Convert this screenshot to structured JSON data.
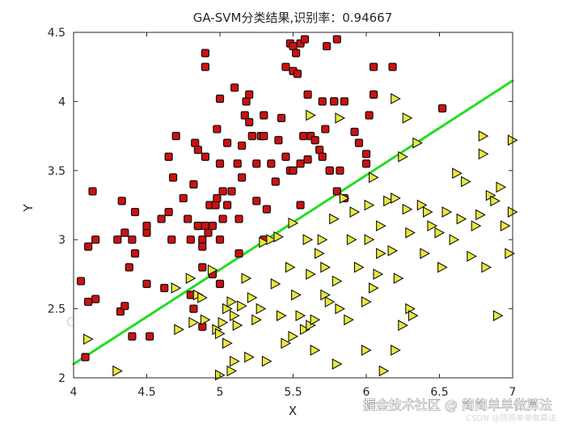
{
  "chart_data": {
    "type": "scatter",
    "title": "GA-SVM分类结果,识别率：0.94667",
    "xlabel": "X",
    "ylabel": "Y",
    "xlim": [
      4,
      7
    ],
    "ylim": [
      2,
      4.5
    ],
    "xticks": [
      4,
      4.5,
      5,
      5.5,
      6,
      6.5,
      7
    ],
    "yticks": [
      2,
      2.5,
      3,
      3.5,
      4,
      4.5
    ],
    "xtick_labels": [
      "4",
      "4.5",
      "5",
      "5.5",
      "6",
      "6.5",
      "7"
    ],
    "ytick_labels": [
      "2",
      "2.5",
      "3",
      "3.5",
      "4",
      "4.5"
    ],
    "grid": false,
    "decision_boundary": {
      "x": [
        4,
        7
      ],
      "y": [
        2.1,
        4.15
      ],
      "color": "#22dd22"
    },
    "series": [
      {
        "marker": "square",
        "color": "#cc1111",
        "points": [
          [
            4.05,
            2.7
          ],
          [
            4.08,
            2.15
          ],
          [
            4.1,
            2.95
          ],
          [
            4.1,
            2.55
          ],
          [
            4.13,
            3.35
          ],
          [
            4.15,
            3.0
          ],
          [
            4.15,
            2.57
          ],
          [
            4.3,
            3.0
          ],
          [
            4.32,
            2.48
          ],
          [
            4.33,
            3.28
          ],
          [
            4.35,
            3.05
          ],
          [
            4.35,
            2.52
          ],
          [
            4.38,
            2.8
          ],
          [
            4.4,
            2.3
          ],
          [
            4.4,
            3.0
          ],
          [
            4.42,
            3.2
          ],
          [
            4.42,
            2.9
          ],
          [
            4.5,
            3.05
          ],
          [
            4.5,
            3.1
          ],
          [
            4.5,
            2.68
          ],
          [
            4.52,
            2.3
          ],
          [
            4.6,
            3.15
          ],
          [
            4.62,
            2.65
          ],
          [
            4.65,
            3.6
          ],
          [
            4.65,
            3.2
          ],
          [
            4.67,
            3.0
          ],
          [
            4.68,
            3.45
          ],
          [
            4.7,
            3.75
          ],
          [
            4.75,
            3.3
          ],
          [
            4.78,
            3.15
          ],
          [
            4.8,
            3.0
          ],
          [
            4.8,
            2.6
          ],
          [
            4.82,
            2.5
          ],
          [
            4.82,
            3.4
          ],
          [
            4.83,
            3.7
          ],
          [
            4.85,
            3.1
          ],
          [
            4.85,
            3.65
          ],
          [
            4.85,
            3.1
          ],
          [
            4.88,
            3.0
          ],
          [
            4.88,
            2.95
          ],
          [
            4.88,
            2.37
          ],
          [
            4.88,
            2.8
          ],
          [
            4.9,
            4.35
          ],
          [
            4.9,
            4.25
          ],
          [
            4.9,
            3.6
          ],
          [
            4.9,
            3.1
          ],
          [
            4.92,
            3.05
          ],
          [
            4.93,
            3.25
          ],
          [
            4.95,
            2.75
          ],
          [
            4.95,
            3.1
          ],
          [
            4.97,
            3.25
          ],
          [
            4.98,
            3.3
          ],
          [
            4.98,
            3.8
          ],
          [
            5.0,
            3.55
          ],
          [
            5.0,
            3.0
          ],
          [
            5.0,
            2.68
          ],
          [
            5.0,
            4.02
          ],
          [
            5.02,
            3.35
          ],
          [
            5.02,
            3.15
          ],
          [
            5.05,
            3.25
          ],
          [
            5.05,
            3.7
          ],
          [
            5.08,
            3.35
          ],
          [
            5.1,
            4.1
          ],
          [
            5.12,
            3.55
          ],
          [
            5.13,
            3.15
          ],
          [
            5.13,
            2.9
          ],
          [
            5.15,
            3.68
          ],
          [
            5.15,
            3.45
          ],
          [
            5.17,
            3.9
          ],
          [
            5.18,
            4.0
          ],
          [
            5.2,
            3.85
          ],
          [
            5.2,
            4.05
          ],
          [
            5.22,
            3.75
          ],
          [
            5.25,
            3.55
          ],
          [
            5.25,
            3.28
          ],
          [
            5.28,
            3.75
          ],
          [
            5.3,
            3.9
          ],
          [
            5.3,
            3.75
          ],
          [
            5.3,
            3.0
          ],
          [
            5.32,
            3.22
          ],
          [
            5.35,
            3.55
          ],
          [
            5.38,
            3.42
          ],
          [
            5.4,
            3.72
          ],
          [
            5.42,
            3.88
          ],
          [
            5.45,
            4.25
          ],
          [
            5.45,
            3.6
          ],
          [
            5.48,
            4.42
          ],
          [
            5.48,
            3.5
          ],
          [
            5.5,
            3.5
          ],
          [
            5.5,
            4.4
          ],
          [
            5.5,
            4.22
          ],
          [
            5.52,
            4.35
          ],
          [
            5.53,
            4.2
          ],
          [
            5.55,
            3.55
          ],
          [
            5.55,
            3.25
          ],
          [
            5.55,
            4.42
          ],
          [
            5.57,
            3.75
          ],
          [
            5.58,
            4.45
          ],
          [
            5.6,
            3.58
          ],
          [
            5.6,
            4.05
          ],
          [
            5.62,
            3.75
          ],
          [
            5.65,
            3.72
          ],
          [
            5.68,
            3.65
          ],
          [
            5.7,
            4.0
          ],
          [
            5.7,
            3.6
          ],
          [
            5.72,
            3.8
          ],
          [
            5.73,
            4.4
          ],
          [
            5.75,
            3.5
          ],
          [
            5.75,
            3.5
          ],
          [
            5.78,
            4.0
          ],
          [
            5.78,
            4.0
          ],
          [
            5.8,
            3.35
          ],
          [
            5.8,
            4.45
          ],
          [
            5.82,
            3.5
          ],
          [
            5.85,
            4.0
          ],
          [
            5.85,
            3.3
          ],
          [
            5.92,
            3.78
          ],
          [
            5.95,
            3.7
          ],
          [
            6.0,
            3.62
          ],
          [
            6.0,
            3.55
          ],
          [
            6.02,
            3.9
          ],
          [
            6.05,
            4.05
          ],
          [
            6.05,
            4.25
          ],
          [
            6.18,
            4.25
          ],
          [
            6.52,
            3.95
          ]
        ]
      },
      {
        "marker": "triangle-right",
        "color": "#e8e83a",
        "points": [
          [
            4.1,
            2.28
          ],
          [
            4.3,
            2.05
          ],
          [
            4.7,
            2.65
          ],
          [
            4.72,
            2.35
          ],
          [
            4.8,
            2.72
          ],
          [
            4.82,
            2.4
          ],
          [
            4.85,
            2.6
          ],
          [
            4.88,
            2.58
          ],
          [
            4.9,
            2.42
          ],
          [
            4.95,
            2.78
          ],
          [
            4.98,
            2.35
          ],
          [
            5.0,
            2.32
          ],
          [
            5.0,
            2.02
          ],
          [
            5.02,
            2.4
          ],
          [
            5.05,
            2.5
          ],
          [
            5.05,
            2.25
          ],
          [
            5.08,
            2.05
          ],
          [
            5.08,
            2.55
          ],
          [
            5.1,
            2.45
          ],
          [
            5.1,
            2.12
          ],
          [
            5.12,
            2.38
          ],
          [
            5.15,
            2.52
          ],
          [
            5.18,
            2.72
          ],
          [
            5.2,
            2.15
          ],
          [
            5.22,
            2.58
          ],
          [
            5.25,
            2.42
          ],
          [
            5.28,
            2.5
          ],
          [
            5.3,
            2.98
          ],
          [
            5.32,
            2.12
          ],
          [
            5.35,
            3.0
          ],
          [
            5.38,
            2.68
          ],
          [
            5.4,
            3.02
          ],
          [
            5.42,
            2.45
          ],
          [
            5.45,
            2.25
          ],
          [
            5.48,
            2.8
          ],
          [
            5.5,
            3.12
          ],
          [
            5.5,
            2.3
          ],
          [
            5.52,
            2.6
          ],
          [
            5.55,
            2.45
          ],
          [
            5.58,
            2.35
          ],
          [
            5.6,
            3.0
          ],
          [
            5.62,
            2.75
          ],
          [
            5.62,
            2.38
          ],
          [
            5.65,
            2.2
          ],
          [
            5.65,
            2.42
          ],
          [
            5.68,
            2.9
          ],
          [
            5.7,
            3.0
          ],
          [
            5.72,
            2.8
          ],
          [
            5.72,
            2.6
          ],
          [
            5.75,
            2.55
          ],
          [
            5.78,
            3.15
          ],
          [
            5.8,
            2.7
          ],
          [
            5.8,
            2.1
          ],
          [
            5.82,
            2.5
          ],
          [
            5.85,
            3.3
          ],
          [
            5.88,
            2.42
          ],
          [
            5.9,
            3.0
          ],
          [
            5.92,
            3.2
          ],
          [
            5.95,
            2.8
          ],
          [
            6.0,
            2.2
          ],
          [
            6.0,
            2.55
          ],
          [
            6.02,
            3.0
          ],
          [
            6.02,
            3.25
          ],
          [
            6.05,
            2.65
          ],
          [
            6.05,
            3.45
          ],
          [
            6.08,
            2.75
          ],
          [
            6.1,
            3.1
          ],
          [
            6.1,
            2.9
          ],
          [
            6.12,
            2.05
          ],
          [
            6.15,
            3.28
          ],
          [
            6.18,
            2.92
          ],
          [
            6.2,
            2.2
          ],
          [
            6.2,
            3.3
          ],
          [
            6.22,
            2.72
          ],
          [
            6.25,
            2.38
          ],
          [
            6.25,
            3.6
          ],
          [
            6.28,
            3.22
          ],
          [
            6.3,
            3.05
          ],
          [
            6.3,
            2.5
          ],
          [
            6.32,
            2.45
          ],
          [
            6.35,
            3.7
          ],
          [
            6.38,
            3.25
          ],
          [
            6.4,
            2.9
          ],
          [
            6.42,
            3.2
          ],
          [
            6.45,
            3.1
          ],
          [
            6.5,
            3.05
          ],
          [
            6.52,
            2.8
          ],
          [
            6.55,
            3.2
          ],
          [
            6.6,
            3.0
          ],
          [
            6.62,
            3.48
          ],
          [
            6.65,
            3.15
          ],
          [
            6.68,
            3.42
          ],
          [
            6.72,
            2.88
          ],
          [
            6.75,
            3.1
          ],
          [
            6.78,
            3.18
          ],
          [
            6.8,
            3.75
          ],
          [
            6.8,
            3.62
          ],
          [
            6.82,
            2.8
          ],
          [
            6.85,
            3.32
          ],
          [
            6.88,
            3.28
          ],
          [
            6.9,
            2.45
          ],
          [
            6.92,
            3.38
          ],
          [
            6.95,
            3.1
          ],
          [
            6.98,
            2.9
          ],
          [
            7.0,
            3.72
          ],
          [
            7.0,
            3.2
          ],
          [
            5.62,
            3.9
          ],
          [
            5.82,
            3.88
          ],
          [
            6.2,
            4.02
          ],
          [
            6.28,
            3.88
          ]
        ]
      }
    ]
  },
  "watermarks": [
    "CSDN博客：简简单单做算法",
    "CSDN博客：简简单单做算法",
    "CSDN博客：简简单单做算法",
    "CSDN博客：简简单单做算法"
  ],
  "footer": {
    "main": "掘金技术社区 @ 简简单单做算法",
    "small": "CSDN @简简单单做算法"
  }
}
